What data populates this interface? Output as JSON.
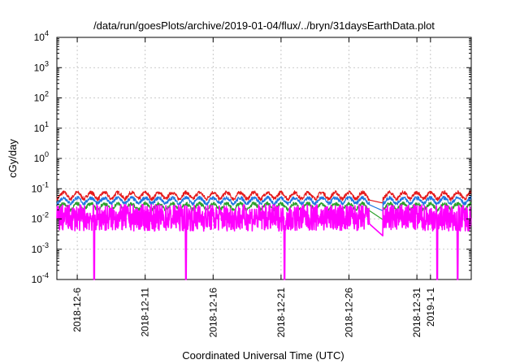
{
  "chart_data": {
    "type": "line",
    "title": "/data/run/goesPlots/archive/2019-01-04/flux/../bryn/31daysEarthData.plot",
    "xlabel": "Coordinated Universal Time (UTC)",
    "ylabel": "cGy/day",
    "yscale": "log",
    "ylim": [
      0.0001,
      10000
    ],
    "xlim": [
      "2018-12-04T12:00",
      "2019-01-04T00:00"
    ],
    "grid": true,
    "legend": "none",
    "y_ticks": [
      {
        "value": 0.0001,
        "base": "10",
        "exp": "-4"
      },
      {
        "value": 0.001,
        "base": "10",
        "exp": "-3"
      },
      {
        "value": 0.01,
        "base": "10",
        "exp": "-2"
      },
      {
        "value": 0.1,
        "base": "10",
        "exp": "-1"
      },
      {
        "value": 1,
        "base": "10",
        "exp": "0"
      },
      {
        "value": 10,
        "base": "10",
        "exp": "1"
      },
      {
        "value": 100,
        "base": "10",
        "exp": "2"
      },
      {
        "value": 1000,
        "base": "10",
        "exp": "3"
      },
      {
        "value": 10000,
        "base": "10",
        "exp": "4"
      }
    ],
    "x_ticks": [
      {
        "date": "2018-12-06",
        "label": "2018-12-6"
      },
      {
        "date": "2018-12-11",
        "label": "2018-12-11"
      },
      {
        "date": "2018-12-16",
        "label": "2018-12-16"
      },
      {
        "date": "2018-12-21",
        "label": "2018-12-21"
      },
      {
        "date": "2018-12-26",
        "label": "2018-12-26"
      },
      {
        "date": "2018-12-31",
        "label": "2018-12-31"
      },
      {
        "date": "2019-01-01",
        "label": "2019-1-1"
      }
    ],
    "series": [
      {
        "color": "#e41a1c",
        "daily_peak": 0.075,
        "daily_trough": 0.03
      },
      {
        "color": "#1f77e0",
        "daily_peak": 0.05,
        "daily_trough": 0.022
      },
      {
        "color": "#2ca02c",
        "daily_peak": 0.032,
        "daily_trough": 0.014
      },
      {
        "color": "#ff00ff",
        "daily_peak": 0.03,
        "daily_trough": 0.004
      }
    ],
    "data_gap": [
      "2018-12-27T12:00",
      "2018-12-28T12:00"
    ],
    "dropouts": [
      "2018-12-07T06:00",
      "2018-12-14T00:00",
      "2018-12-21T06:00",
      "2019-01-01T12:00",
      "2019-01-03T00:00"
    ]
  }
}
